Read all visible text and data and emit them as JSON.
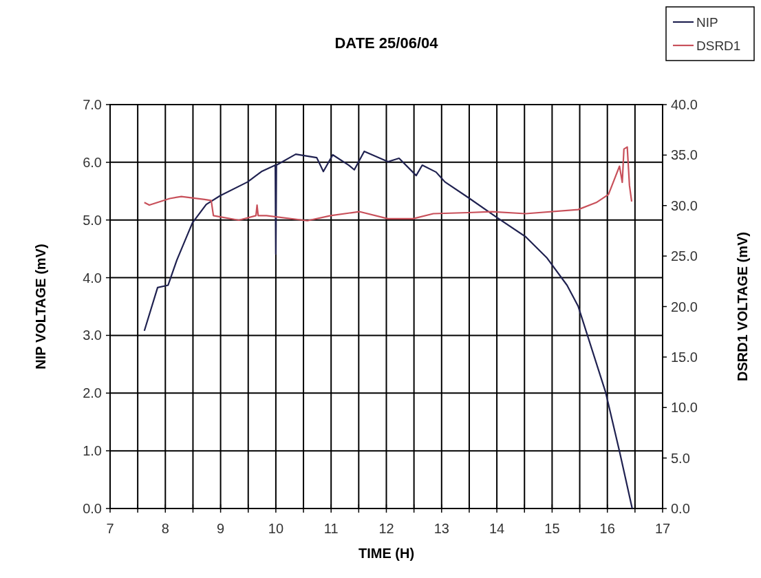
{
  "chart_data": {
    "type": "line",
    "title": "DATE 25/06/04",
    "xlabel": "TIME (H)",
    "ylabel": "NIP VOLTAGE (mV)",
    "y2label": "DSRD1 VOLTAGE (mV)",
    "xlim": [
      7,
      17
    ],
    "xticks": [
      7,
      {
        "value": 7.5,
        "label": null
      },
      8,
      {
        "value": 8.5,
        "label": null
      },
      9,
      {
        "value": 9.5,
        "label": null
      },
      10,
      {
        "value": 10.5,
        "label": null
      },
      11,
      {
        "value": 11.5,
        "label": null
      },
      12,
      {
        "value": 12.5,
        "label": null
      },
      13,
      {
        "value": 13.5,
        "label": null
      },
      14,
      {
        "value": 14.5,
        "label": null
      },
      15,
      {
        "value": 15.5,
        "label": null
      },
      16,
      {
        "value": 16.5,
        "label": null
      },
      17
    ],
    "ylim": [
      0,
      7
    ],
    "yticks": [
      {
        "value": 0,
        "label": "0.0"
      },
      {
        "value": 1,
        "label": "1.0"
      },
      {
        "value": 2,
        "label": "2.0"
      },
      {
        "value": 3,
        "label": "3.0"
      },
      {
        "value": 4,
        "label": "4.0"
      },
      {
        "value": 5,
        "label": "5.0"
      },
      {
        "value": 6,
        "label": "6.0"
      },
      {
        "value": 7,
        "label": "7.0"
      }
    ],
    "y2lim": [
      0,
      40
    ],
    "y2ticks": [
      {
        "value": 0,
        "label": "0.0"
      },
      {
        "value": 5,
        "label": "5.0"
      },
      {
        "value": 10,
        "label": "10.0"
      },
      {
        "value": 15,
        "label": "15.0"
      },
      {
        "value": 20,
        "label": "20.0"
      },
      {
        "value": 25,
        "label": "25.0"
      },
      {
        "value": 30,
        "label": "30.0"
      },
      {
        "value": 35,
        "label": "35.0"
      },
      {
        "value": 40,
        "label": "40.0"
      }
    ],
    "grid": true,
    "legend": "top right",
    "line_style": "solid",
    "series": [
      {
        "name": "NIP",
        "color": "#1f2150",
        "x": [
          7.62,
          7.86,
          8.05,
          8.21,
          8.49,
          8.74,
          8.99,
          9.49,
          9.74,
          9.99,
          10.0,
          10.01,
          10.36,
          10.74,
          10.86,
          11.03,
          11.32,
          11.42,
          11.6,
          12.03,
          12.23,
          12.54,
          12.65,
          12.9,
          13.06,
          13.48,
          14.02,
          14.52,
          14.9,
          15.27,
          15.47,
          15.64,
          15.97,
          16.22,
          16.45
        ],
        "values": [
          3.08,
          3.83,
          3.87,
          4.31,
          4.95,
          5.27,
          5.42,
          5.66,
          5.84,
          5.95,
          4.41,
          5.95,
          6.14,
          6.08,
          5.84,
          6.13,
          5.95,
          5.87,
          6.19,
          6.01,
          6.07,
          5.77,
          5.95,
          5.83,
          5.66,
          5.39,
          5.03,
          4.71,
          4.35,
          3.87,
          3.51,
          3.0,
          2.01,
          0.99,
          0.0
        ]
      },
      {
        "name": "DSRD1",
        "color": "#c8505a",
        "axis": "y2",
        "x": [
          7.62,
          7.71,
          8.08,
          8.29,
          8.71,
          8.83,
          8.87,
          9.33,
          9.64,
          9.66,
          9.68,
          9.83,
          10.57,
          10.99,
          11.51,
          12.03,
          12.48,
          12.85,
          13.48,
          13.9,
          14.52,
          15.47,
          15.8,
          16.02,
          16.22,
          16.27,
          16.3,
          16.36,
          16.4,
          16.44
        ],
        "values": [
          30.3,
          30.05,
          30.7,
          30.9,
          30.6,
          30.5,
          29.0,
          28.55,
          29.0,
          30.05,
          29.0,
          29.0,
          28.5,
          29.0,
          29.4,
          28.7,
          28.7,
          29.2,
          29.3,
          29.4,
          29.2,
          29.6,
          30.3,
          31.1,
          33.9,
          32.3,
          35.6,
          35.8,
          32.0,
          30.4
        ]
      }
    ]
  }
}
